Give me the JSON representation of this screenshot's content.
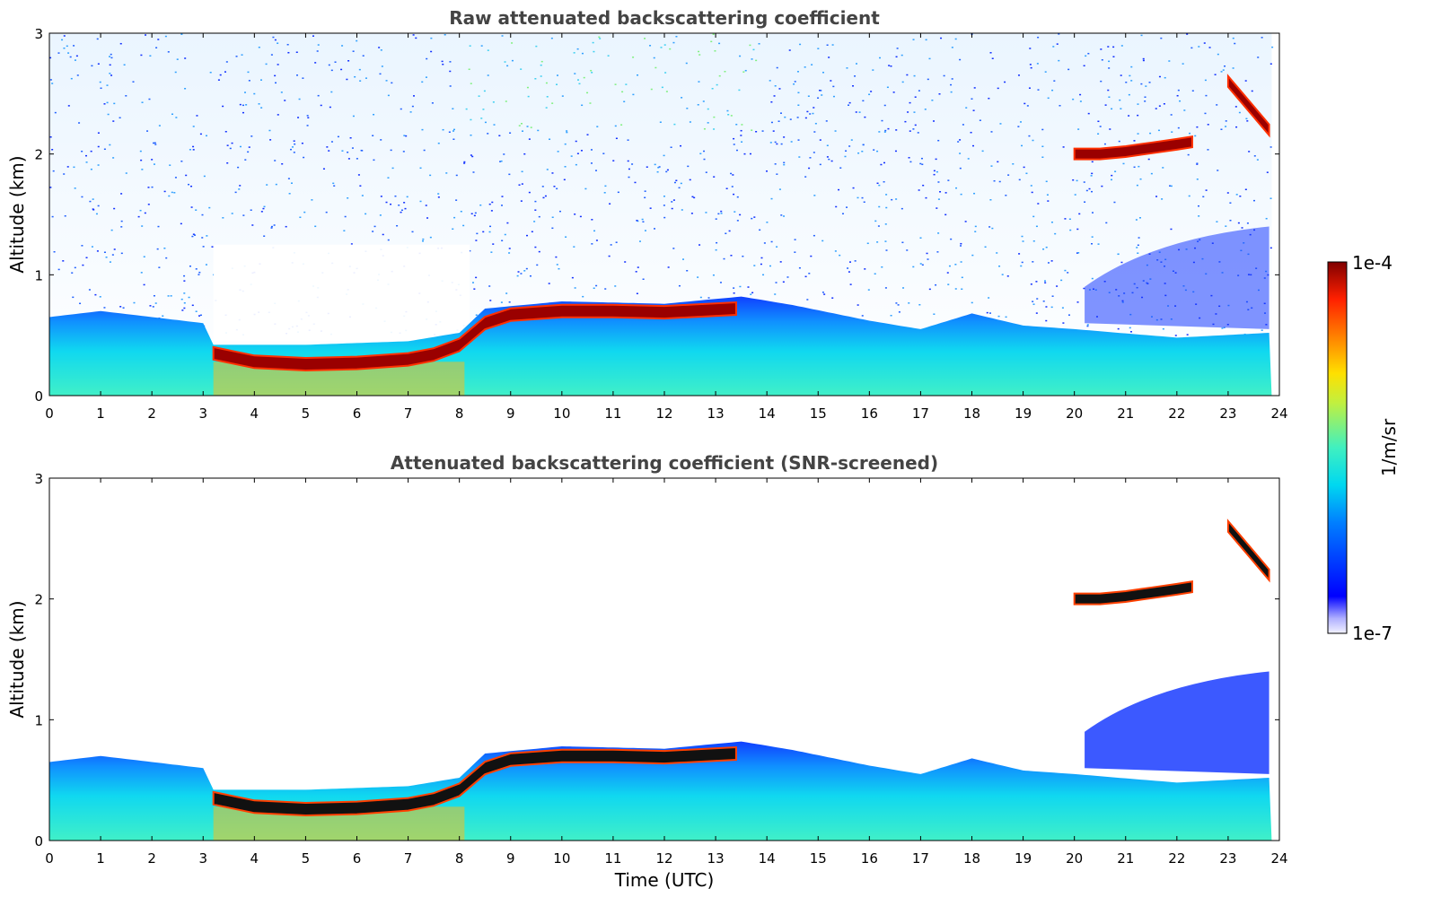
{
  "figure": {
    "xlabel": "Time (UTC)"
  },
  "colorbar": {
    "label": "1/m/sr",
    "max_label": "1e-4",
    "min_label": "1e-7",
    "min_value": 1e-07,
    "max_value": 0.0001,
    "scale": "log",
    "colormap": "jet"
  },
  "chart_data": [
    {
      "type": "heatmap",
      "title": "Raw attenuated backscattering coefficient",
      "xlabel": "",
      "ylabel": "Altitude (km)",
      "xlim": [
        0,
        24
      ],
      "ylim": [
        0,
        3
      ],
      "x_ticks": [
        "0",
        "1",
        "2",
        "3",
        "4",
        "5",
        "6",
        "7",
        "8",
        "9",
        "10",
        "11",
        "12",
        "13",
        "14",
        "15",
        "16",
        "17",
        "18",
        "19",
        "20",
        "21",
        "22",
        "23",
        "24"
      ],
      "y_ticks": [
        "0",
        "1",
        "2",
        "3"
      ],
      "snr_screened": false,
      "features": [
        {
          "kind": "boundary_layer_top_km",
          "times_utc": [
            0,
            1,
            2,
            3,
            3.2,
            5,
            7,
            8,
            8.5,
            10,
            12,
            13.5,
            14.5,
            16,
            17,
            18,
            19,
            20,
            22,
            23.8
          ],
          "values": [
            0.65,
            0.7,
            0.65,
            0.6,
            0.42,
            0.42,
            0.45,
            0.52,
            0.72,
            0.78,
            0.76,
            0.82,
            0.75,
            0.62,
            0.55,
            0.68,
            0.58,
            0.55,
            0.48,
            0.52
          ]
        },
        {
          "kind": "cloud_layer_km",
          "times_utc": [
            3.2,
            4,
            5,
            6,
            7,
            7.5,
            8,
            8.5,
            9,
            10,
            11,
            12,
            13.4
          ],
          "values": [
            0.35,
            0.28,
            0.26,
            0.27,
            0.3,
            0.34,
            0.42,
            0.6,
            0.67,
            0.7,
            0.7,
            0.69,
            0.72
          ]
        },
        {
          "kind": "cloud_layer_km",
          "times_utc": [
            20,
            20.5,
            21,
            21.5,
            22,
            22.3
          ],
          "values": [
            2.0,
            2.0,
            2.02,
            2.05,
            2.08,
            2.1
          ]
        },
        {
          "kind": "cloud_layer_km",
          "times_utc": [
            23.0,
            23.2,
            23.5,
            23.8
          ],
          "values": [
            2.6,
            2.5,
            2.35,
            2.2
          ]
        }
      ]
    },
    {
      "type": "heatmap",
      "title": "Attenuated backscattering coefficient (SNR-screened)",
      "xlabel": "Time (UTC)",
      "ylabel": "Altitude (km)",
      "xlim": [
        0,
        24
      ],
      "ylim": [
        0,
        3
      ],
      "x_ticks": [
        "0",
        "1",
        "2",
        "3",
        "4",
        "5",
        "6",
        "7",
        "8",
        "9",
        "10",
        "11",
        "12",
        "13",
        "14",
        "15",
        "16",
        "17",
        "18",
        "19",
        "20",
        "21",
        "22",
        "23",
        "24"
      ],
      "y_ticks": [
        "0",
        "1",
        "2",
        "3"
      ],
      "snr_screened": true,
      "features": [
        {
          "kind": "boundary_layer_top_km",
          "times_utc": [
            0,
            1,
            2,
            3,
            3.2,
            5,
            7,
            8,
            8.5,
            10,
            12,
            13.5,
            14.5,
            16,
            17,
            18,
            19,
            20,
            22,
            23.8
          ],
          "values": [
            0.65,
            0.7,
            0.65,
            0.6,
            0.42,
            0.42,
            0.45,
            0.52,
            0.72,
            0.78,
            0.76,
            0.82,
            0.75,
            0.62,
            0.55,
            0.68,
            0.58,
            0.55,
            0.48,
            0.52
          ]
        },
        {
          "kind": "cloud_layer_km",
          "times_utc": [
            3.2,
            4,
            5,
            6,
            7,
            7.5,
            8,
            8.5,
            9,
            10,
            11,
            12,
            13.4
          ],
          "values": [
            0.35,
            0.28,
            0.26,
            0.27,
            0.3,
            0.34,
            0.42,
            0.6,
            0.67,
            0.7,
            0.7,
            0.69,
            0.72
          ]
        },
        {
          "kind": "cloud_layer_km",
          "times_utc": [
            20,
            20.5,
            21,
            21.5,
            22,
            22.3
          ],
          "values": [
            2.0,
            2.0,
            2.02,
            2.05,
            2.08,
            2.1
          ]
        },
        {
          "kind": "cloud_layer_km",
          "times_utc": [
            23.0,
            23.2,
            23.5,
            23.8
          ],
          "values": [
            2.6,
            2.5,
            2.35,
            2.2
          ]
        }
      ]
    }
  ]
}
